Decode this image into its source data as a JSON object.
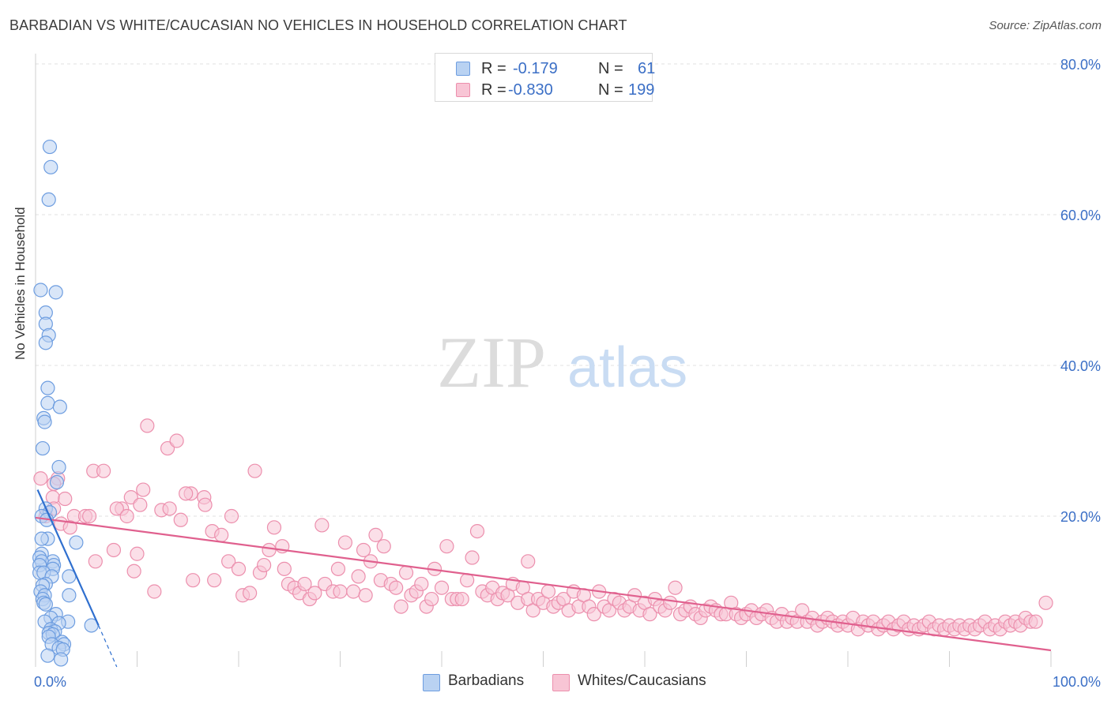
{
  "title": "BARBADIAN VS WHITE/CAUCASIAN NO VEHICLES IN HOUSEHOLD CORRELATION CHART",
  "source": "Source: ZipAtlas.com",
  "watermark": {
    "zip": "ZIP",
    "atlas": "atlas"
  },
  "legend_top": [
    {
      "r_label": "R =",
      "r_value": "-0.179",
      "n_label": "N =",
      "n_value": "61"
    },
    {
      "r_label": "R =",
      "r_value": "-0.830",
      "n_label": "N =",
      "n_value": "199"
    }
  ],
  "legend_bottom": [
    "Barbadians",
    "Whites/Caucasians"
  ],
  "colors": {
    "barbadians_fill": "#b9d2f2",
    "barbadians_stroke": "#6d9de0",
    "barbadians_line": "#2f6fcf",
    "whites_fill": "#f8c5d5",
    "whites_stroke": "#ec8fad",
    "whites_line": "#e0608e",
    "axis_text": "#3b6fc6",
    "grid": "#e0e0e0"
  },
  "chart_data": {
    "type": "scatter",
    "xlabel": "",
    "ylabel": "No Vehicles in Household",
    "xlim": [
      0,
      100
    ],
    "ylim": [
      0,
      85
    ],
    "y_ticks": [
      20,
      40,
      60,
      80
    ],
    "y_tick_labels": [
      "20.0%",
      "40.0%",
      "60.0%",
      "80.0%"
    ],
    "x_tick_labels": [
      "0.0%",
      "100.0%"
    ],
    "grid": "horizontal dashed",
    "series": [
      {
        "name": "Barbadians",
        "r": -0.179,
        "n": 61,
        "trend": {
          "x": [
            0.2,
            6.2,
            8.0
          ],
          "y": [
            23.5,
            5.5,
            0.0
          ],
          "dashed_from_x": 6.2
        },
        "points": [
          [
            1.4,
            69
          ],
          [
            1.5,
            66.3
          ],
          [
            1.3,
            62
          ],
          [
            0.5,
            50
          ],
          [
            2.0,
            49.7
          ],
          [
            1.0,
            47
          ],
          [
            1.0,
            45.5
          ],
          [
            1.3,
            44
          ],
          [
            1.0,
            43
          ],
          [
            1.2,
            37
          ],
          [
            1.2,
            35
          ],
          [
            2.4,
            34.5
          ],
          [
            0.8,
            33
          ],
          [
            0.9,
            32.5
          ],
          [
            0.7,
            29
          ],
          [
            2.3,
            26.5
          ],
          [
            2.1,
            24.5
          ],
          [
            1.0,
            21
          ],
          [
            1.4,
            20.5
          ],
          [
            0.6,
            20
          ],
          [
            1.1,
            19.5
          ],
          [
            1.2,
            17
          ],
          [
            0.6,
            17
          ],
          [
            4.0,
            16.5
          ],
          [
            0.6,
            15
          ],
          [
            0.4,
            14.5
          ],
          [
            1.7,
            14
          ],
          [
            0.6,
            14
          ],
          [
            1.8,
            13.5
          ],
          [
            0.4,
            13.5
          ],
          [
            1.7,
            13
          ],
          [
            0.4,
            12.5
          ],
          [
            0.8,
            12.5
          ],
          [
            3.3,
            12
          ],
          [
            1.6,
            12
          ],
          [
            1.0,
            11
          ],
          [
            0.7,
            10.8
          ],
          [
            0.5,
            10
          ],
          [
            3.3,
            9.5
          ],
          [
            0.9,
            9.5
          ],
          [
            0.7,
            9
          ],
          [
            0.8,
            8.5
          ],
          [
            1.0,
            8.3
          ],
          [
            2.0,
            7
          ],
          [
            1.5,
            6.5
          ],
          [
            3.2,
            6
          ],
          [
            0.9,
            6
          ],
          [
            2.3,
            5.8
          ],
          [
            5.5,
            5.5
          ],
          [
            1.5,
            5
          ],
          [
            1.9,
            4.7
          ],
          [
            1.3,
            4.5
          ],
          [
            1.7,
            4.3
          ],
          [
            1.3,
            4
          ],
          [
            2.6,
            3.3
          ],
          [
            2.8,
            3
          ],
          [
            1.6,
            3
          ],
          [
            2.3,
            2.5
          ],
          [
            2.7,
            2.3
          ],
          [
            1.2,
            1.5
          ],
          [
            2.5,
            1
          ]
        ]
      },
      {
        "name": "Whites/Caucasians",
        "r": -0.83,
        "n": 199,
        "trend": {
          "x": [
            0,
            100
          ],
          "y": [
            19.8,
            2.2
          ]
        },
        "points": [
          [
            0.5,
            25
          ],
          [
            2.2,
            25
          ],
          [
            1.8,
            24.3
          ],
          [
            1.7,
            22.5
          ],
          [
            2.9,
            22.3
          ],
          [
            1.8,
            21
          ],
          [
            3.8,
            20
          ],
          [
            2.5,
            19
          ],
          [
            4.9,
            20
          ],
          [
            3.4,
            18.5
          ],
          [
            5.3,
            20
          ],
          [
            1.0,
            20
          ],
          [
            5.7,
            26
          ],
          [
            6.7,
            26
          ],
          [
            11.0,
            32
          ],
          [
            13.0,
            29
          ],
          [
            13.9,
            30
          ],
          [
            9.4,
            22.5
          ],
          [
            10.3,
            21.5
          ],
          [
            10.6,
            23.5
          ],
          [
            12.4,
            20.8
          ],
          [
            13.2,
            21
          ],
          [
            14.3,
            19.5
          ],
          [
            8.5,
            21
          ],
          [
            8.0,
            21
          ],
          [
            9.0,
            20
          ],
          [
            15.3,
            23
          ],
          [
            14.8,
            23
          ],
          [
            16.6,
            22.5
          ],
          [
            16.7,
            21.5
          ],
          [
            17.4,
            18
          ],
          [
            18.3,
            17.5
          ],
          [
            19.3,
            20
          ],
          [
            21.6,
            26
          ],
          [
            5.9,
            14
          ],
          [
            7.7,
            15.5
          ],
          [
            9.7,
            12.7
          ],
          [
            10.0,
            15
          ],
          [
            11.7,
            10
          ],
          [
            15.5,
            11.5
          ],
          [
            17.6,
            11.5
          ],
          [
            19.0,
            14
          ],
          [
            20.0,
            13
          ],
          [
            20.4,
            9.5
          ],
          [
            21.1,
            9.8
          ],
          [
            22.1,
            12.5
          ],
          [
            22.5,
            13.5
          ],
          [
            23.0,
            15.5
          ],
          [
            23.5,
            18.5
          ],
          [
            24.3,
            16
          ],
          [
            24.5,
            13
          ],
          [
            24.9,
            11
          ],
          [
            25.5,
            10.5
          ],
          [
            26.0,
            9.8
          ],
          [
            26.5,
            11
          ],
          [
            27.0,
            9
          ],
          [
            27.5,
            9.8
          ],
          [
            28.2,
            18.8
          ],
          [
            28.5,
            11
          ],
          [
            29.3,
            10
          ],
          [
            29.8,
            13
          ],
          [
            30.0,
            10
          ],
          [
            30.5,
            16.5
          ],
          [
            31.3,
            10
          ],
          [
            31.8,
            12
          ],
          [
            32.3,
            15.5
          ],
          [
            32.5,
            9.5
          ],
          [
            33.0,
            14
          ],
          [
            33.5,
            17.5
          ],
          [
            34.0,
            11.5
          ],
          [
            34.3,
            16
          ],
          [
            35.0,
            11
          ],
          [
            35.5,
            10.5
          ],
          [
            36.0,
            8
          ],
          [
            36.5,
            12.5
          ],
          [
            37.0,
            9.5
          ],
          [
            37.5,
            10
          ],
          [
            38.0,
            11
          ],
          [
            38.5,
            8
          ],
          [
            39.0,
            9
          ],
          [
            39.3,
            13
          ],
          [
            40.0,
            10.5
          ],
          [
            40.5,
            16
          ],
          [
            41.0,
            9
          ],
          [
            41.5,
            9
          ],
          [
            42.0,
            9
          ],
          [
            42.5,
            11.5
          ],
          [
            43.0,
            14.5
          ],
          [
            43.5,
            18
          ],
          [
            44.0,
            10
          ],
          [
            44.5,
            9.5
          ],
          [
            45.0,
            10.5
          ],
          [
            45.5,
            9
          ],
          [
            46.0,
            9.8
          ],
          [
            46.5,
            9.5
          ],
          [
            47.0,
            11
          ],
          [
            47.5,
            8.5
          ],
          [
            48.0,
            10.5
          ],
          [
            48.5,
            9
          ],
          [
            48.5,
            14
          ],
          [
            49.0,
            7.5
          ],
          [
            49.5,
            9
          ],
          [
            50.0,
            8.5
          ],
          [
            50.5,
            10
          ],
          [
            51.0,
            8
          ],
          [
            51.5,
            8.5
          ],
          [
            52.0,
            9
          ],
          [
            52.5,
            7.5
          ],
          [
            53.0,
            10
          ],
          [
            53.5,
            8
          ],
          [
            54.0,
            9.5
          ],
          [
            54.5,
            8
          ],
          [
            55.0,
            7
          ],
          [
            55.5,
            10
          ],
          [
            56.0,
            8
          ],
          [
            56.5,
            7.5
          ],
          [
            57.0,
            9
          ],
          [
            57.5,
            8.5
          ],
          [
            58.0,
            7.5
          ],
          [
            58.5,
            8
          ],
          [
            59.0,
            9.5
          ],
          [
            59.5,
            7.5
          ],
          [
            60.0,
            8.5
          ],
          [
            60.5,
            7
          ],
          [
            61.0,
            9
          ],
          [
            61.5,
            8
          ],
          [
            62.0,
            7.5
          ],
          [
            62.5,
            8.5
          ],
          [
            63.0,
            10.5
          ],
          [
            63.5,
            7
          ],
          [
            64.0,
            7.5
          ],
          [
            64.5,
            8
          ],
          [
            65.0,
            7
          ],
          [
            65.5,
            6.5
          ],
          [
            66.0,
            7.5
          ],
          [
            66.5,
            8
          ],
          [
            67.0,
            7.5
          ],
          [
            67.5,
            7
          ],
          [
            68.0,
            7
          ],
          [
            68.5,
            8.5
          ],
          [
            69.0,
            7
          ],
          [
            69.5,
            6.5
          ],
          [
            70.0,
            7
          ],
          [
            70.5,
            7.5
          ],
          [
            71.0,
            6.5
          ],
          [
            71.5,
            7
          ],
          [
            72.0,
            7.5
          ],
          [
            72.5,
            6.5
          ],
          [
            73.0,
            6
          ],
          [
            73.5,
            7
          ],
          [
            74.0,
            6
          ],
          [
            74.5,
            6.5
          ],
          [
            75.0,
            6
          ],
          [
            75.5,
            7.5
          ],
          [
            76.0,
            6
          ],
          [
            76.5,
            6.5
          ],
          [
            77.0,
            5.5
          ],
          [
            77.5,
            6
          ],
          [
            78.0,
            6.5
          ],
          [
            78.5,
            6
          ],
          [
            79.0,
            5.5
          ],
          [
            79.5,
            6
          ],
          [
            80.0,
            5.5
          ],
          [
            80.5,
            6.5
          ],
          [
            81.0,
            5
          ],
          [
            81.5,
            6
          ],
          [
            82.0,
            5.5
          ],
          [
            82.5,
            6
          ],
          [
            83.0,
            5
          ],
          [
            83.5,
            5.5
          ],
          [
            84.0,
            6
          ],
          [
            84.5,
            5
          ],
          [
            85.0,
            5.5
          ],
          [
            85.5,
            6
          ],
          [
            86.0,
            5
          ],
          [
            86.5,
            5.5
          ],
          [
            87.0,
            5
          ],
          [
            87.5,
            5.5
          ],
          [
            88.0,
            6
          ],
          [
            88.5,
            5
          ],
          [
            89.0,
            5.5
          ],
          [
            89.5,
            5
          ],
          [
            90.0,
            5.5
          ],
          [
            90.5,
            5
          ],
          [
            91.0,
            5.5
          ],
          [
            91.5,
            5
          ],
          [
            92.0,
            5.5
          ],
          [
            92.5,
            5
          ],
          [
            93.0,
            5.5
          ],
          [
            93.5,
            6
          ],
          [
            94.0,
            5
          ],
          [
            94.5,
            5.5
          ],
          [
            95.0,
            5
          ],
          [
            95.5,
            6
          ],
          [
            96.0,
            5.5
          ],
          [
            96.5,
            6
          ],
          [
            97.0,
            5.5
          ],
          [
            97.5,
            6.5
          ],
          [
            98.0,
            6
          ],
          [
            98.5,
            6
          ],
          [
            99.5,
            8.5
          ]
        ]
      }
    ]
  }
}
